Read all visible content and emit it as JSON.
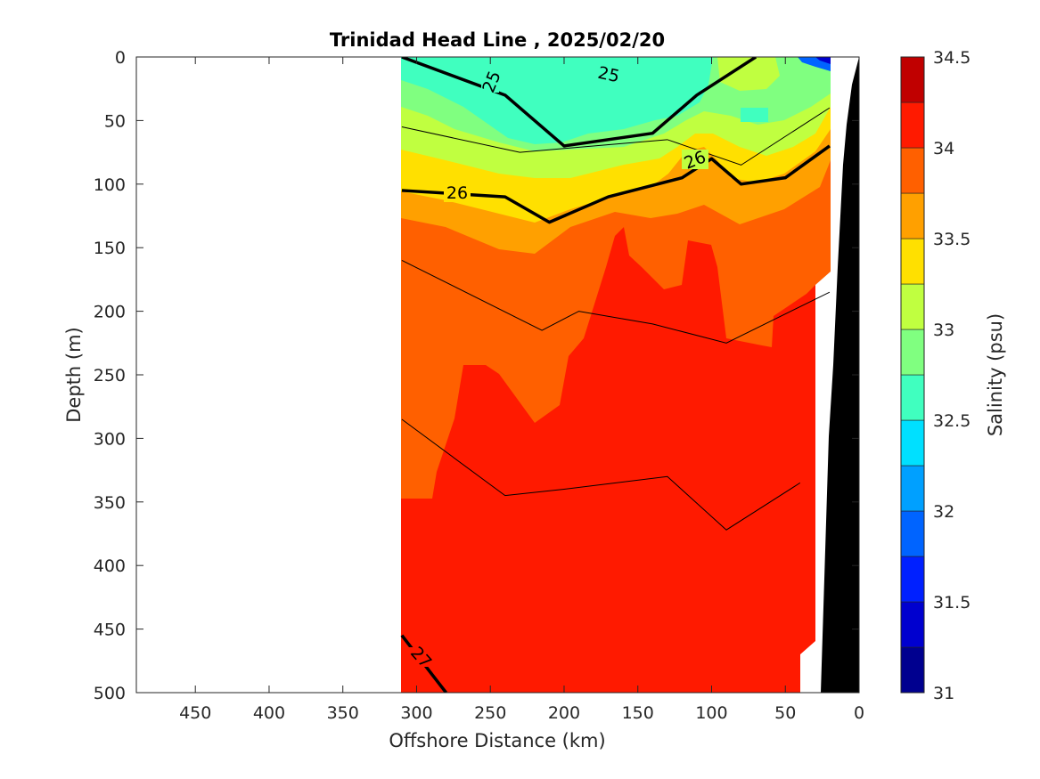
{
  "chart_data": {
    "type": "heatmap",
    "subtype": "filled-contour-section",
    "title": "Trinidad Head Line , 2025/02/20",
    "xlabel": "Offshore Distance (km)",
    "ylabel": "Depth (m)",
    "xlim": [
      490,
      0
    ],
    "x_reversed": true,
    "ylim": [
      0,
      500
    ],
    "y_reversed": true,
    "x_ticks": [
      "450",
      "400",
      "350",
      "300",
      "250",
      "200",
      "150",
      "100",
      "50",
      "0"
    ],
    "y_ticks": [
      "0",
      "50",
      "100",
      "150",
      "200",
      "250",
      "300",
      "350",
      "400",
      "450",
      "500"
    ],
    "colorbar": {
      "label": "Salinity (psu)",
      "min": 31,
      "max": 34.5,
      "step": 0.25,
      "tick_labels": [
        "34.5",
        "34",
        "33.5",
        "33",
        "32.5",
        "32",
        "31.5",
        "31"
      ],
      "colors": [
        "#00008f",
        "#0000cf",
        "#0020ff",
        "#0064ff",
        "#00a0ff",
        "#00e0ff",
        "#40ffbf",
        "#80ff80",
        "#c0ff40",
        "#ffe000",
        "#ffa000",
        "#ff6000",
        "#ff1a00",
        "#c00000"
      ]
    },
    "data_extent_km": [
      310,
      20
    ],
    "bottom_color": "#000000",
    "salinity_layers": [
      {
        "salinity": 32.75,
        "region": "upper core 200-140 km, 0-70 m"
      },
      {
        "salinity": 33.0,
        "region": "shallow layer 0-110 m"
      },
      {
        "salinity": 33.25,
        "region": "thin layer ~60-120 m"
      },
      {
        "salinity": 33.5,
        "region": "thin layer ~80-130 m"
      },
      {
        "salinity": 33.75,
        "region": "~100-160 m"
      },
      {
        "salinity": 34.0,
        "region": "~150-300 m"
      },
      {
        "salinity": 34.25,
        "region": "deep water below ~250 m"
      }
    ],
    "density_contours": [
      {
        "sigma": 25,
        "label": "25",
        "depth_profile": [
          [
            310,
            0
          ],
          [
            240,
            30
          ],
          [
            200,
            70
          ],
          [
            140,
            60
          ],
          [
            110,
            30
          ],
          [
            70,
            0
          ]
        ]
      },
      {
        "sigma": 26,
        "label": "26",
        "depth_profile": [
          [
            310,
            105
          ],
          [
            240,
            110
          ],
          [
            210,
            130
          ],
          [
            170,
            110
          ],
          [
            120,
            95
          ],
          [
            100,
            80
          ],
          [
            80,
            100
          ],
          [
            50,
            95
          ],
          [
            20,
            70
          ]
        ]
      },
      {
        "sigma": 27,
        "label": "27",
        "depth_profile": [
          [
            310,
            455
          ],
          [
            280,
            500
          ]
        ]
      }
    ],
    "thin_isopycnals_depth_m": [
      [
        [
          310,
          55
        ],
        [
          230,
          75
        ],
        [
          130,
          65
        ],
        [
          80,
          85
        ],
        [
          20,
          40
        ]
      ],
      [
        [
          310,
          160
        ],
        [
          215,
          215
        ],
        [
          190,
          200
        ],
        [
          140,
          210
        ],
        [
          90,
          225
        ],
        [
          20,
          185
        ]
      ],
      [
        [
          310,
          285
        ],
        [
          240,
          345
        ],
        [
          200,
          340
        ],
        [
          130,
          330
        ],
        [
          90,
          372
        ],
        [
          40,
          335
        ]
      ]
    ]
  }
}
